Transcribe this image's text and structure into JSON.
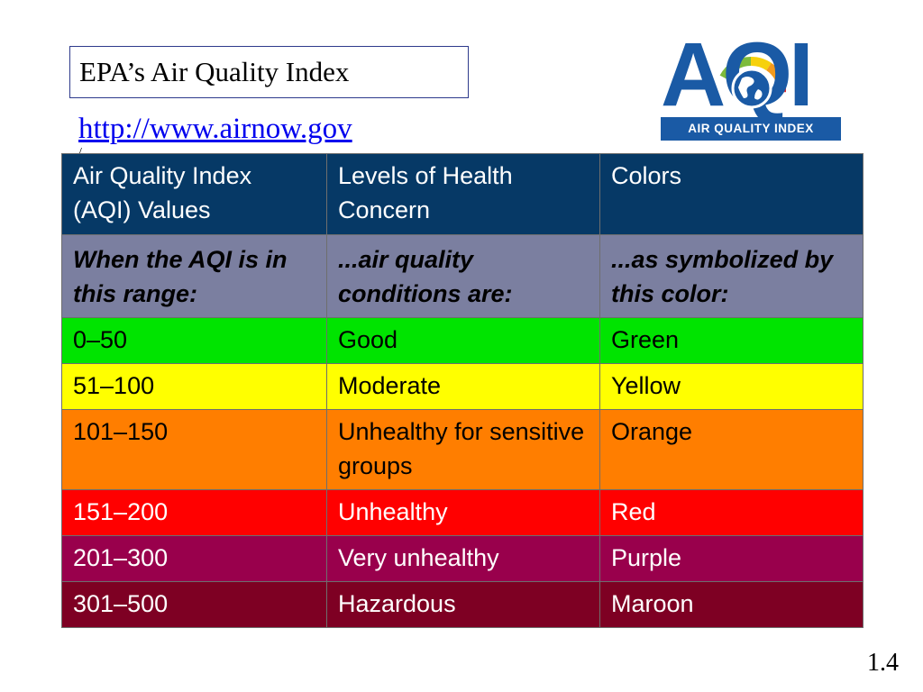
{
  "slide": {
    "title": "EPA’s Air Quality Index",
    "url": "http://www.airnow.gov",
    "url_tail": "/",
    "page_number": "1.4"
  },
  "logo": {
    "letters": "AQI",
    "banner": "AIR QUALITY INDEX",
    "brand_color": "#1a5aa5",
    "icon": "globe-icon"
  },
  "table": {
    "header": [
      "Air Quality Index (AQI) Values",
      "Levels of Health Concern",
      "Colors"
    ],
    "subheader": [
      "When the AQI is in this range:",
      "...air quality conditions are:",
      "...as symbolized by this color:"
    ],
    "header_color": "#063966",
    "subheader_color": "#7b7fa0",
    "rows": [
      {
        "range": "0–50",
        "level": "Good",
        "color": "Green",
        "bg": "#00e400",
        "fg": "#000000"
      },
      {
        "range": "51–100",
        "level": "Moderate",
        "color": "Yellow",
        "bg": "#ffff00",
        "fg": "#000000"
      },
      {
        "range": "101–150",
        "level": "Unhealthy for sensitive groups",
        "color": "Orange",
        "bg": "#ff7e00",
        "fg": "#000000"
      },
      {
        "range": "151–200",
        "level": "Unhealthy",
        "color": "Red",
        "bg": "#ff0000",
        "fg": "#ffffff"
      },
      {
        "range": "201–300",
        "level": "Very unhealthy",
        "color": "Purple",
        "bg": "#99004c",
        "fg": "#ffffff"
      },
      {
        "range": "301–500",
        "level": "Hazardous",
        "color": "Maroon",
        "bg": "#7e0023",
        "fg": "#ffffff"
      }
    ]
  }
}
